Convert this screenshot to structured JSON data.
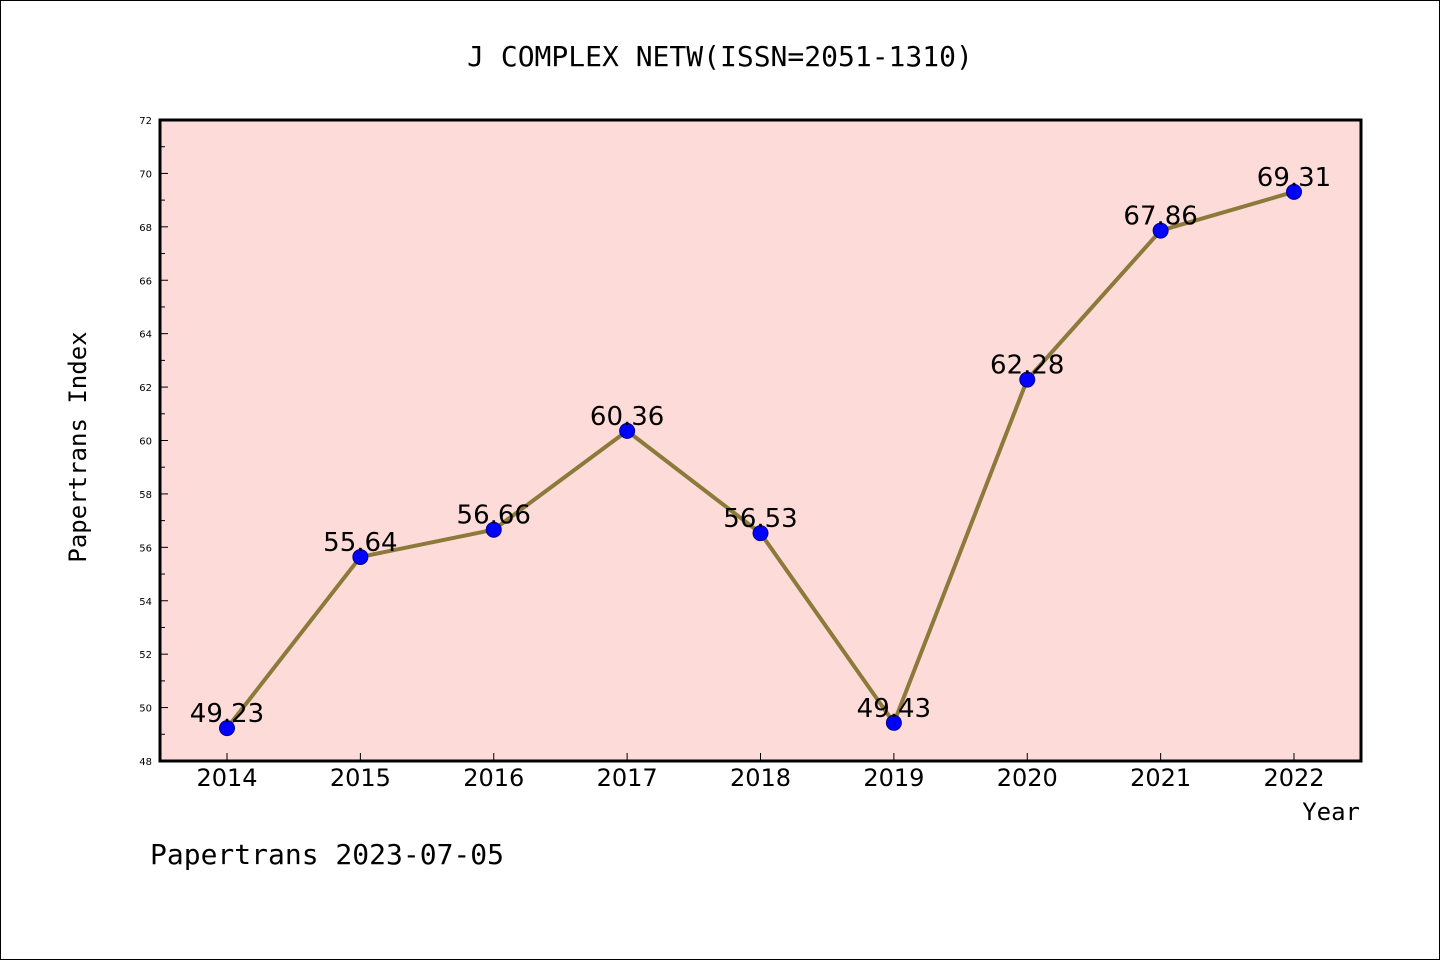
{
  "chart_data": {
    "type": "line",
    "title": "J COMPLEX NETW(ISSN=2051-1310)",
    "xlabel": "Year",
    "ylabel": "Papertrans Index",
    "categories": [
      "2014",
      "2015",
      "2016",
      "2017",
      "2018",
      "2019",
      "2020",
      "2021",
      "2022"
    ],
    "values": [
      49.23,
      55.64,
      56.66,
      60.36,
      56.53,
      49.43,
      62.28,
      67.86,
      69.31
    ],
    "data_labels": [
      "49.23",
      "55.64",
      "56.66",
      "60.36",
      "56.53",
      "49.43",
      "62.28",
      "67.86",
      "69.31"
    ],
    "ylim": [
      48,
      72
    ],
    "yticks": [
      "48",
      "50",
      "52",
      "54",
      "56",
      "58",
      "60",
      "62",
      "64",
      "66",
      "68",
      "70",
      "72"
    ],
    "grid": false,
    "legend": "none",
    "colors": {
      "plot_background": "#fddbd8",
      "line": "#8b7a3a",
      "marker": "#0000ff",
      "marker_edge": "#00008b",
      "axes": "#000000"
    }
  },
  "footer": "Papertrans 2023-07-05"
}
